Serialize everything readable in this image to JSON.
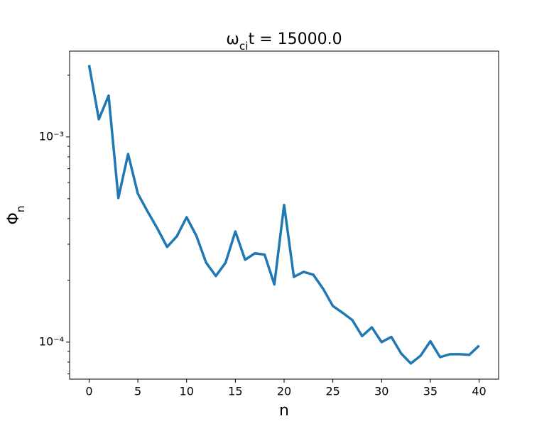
{
  "chart_data": {
    "type": "line",
    "title": "ωcit = 15000.0",
    "xlabel": "n",
    "ylabel": "Φn",
    "x": [
      0,
      1,
      2,
      3,
      4,
      5,
      6,
      7,
      8,
      9,
      10,
      11,
      12,
      13,
      14,
      15,
      16,
      17,
      18,
      19,
      20,
      21,
      22,
      23,
      24,
      25,
      26,
      27,
      28,
      29,
      30,
      31,
      32,
      33,
      34,
      35,
      36,
      37,
      38,
      39,
      40
    ],
    "series": [
      {
        "color": "#1f77b4",
        "values": [
          0.00224,
          0.00122,
          0.00159,
          0.000504,
          0.000826,
          0.000529,
          0.000433,
          0.000358,
          0.000291,
          0.000328,
          0.000406,
          0.00033,
          0.000244,
          0.00021,
          0.000244,
          0.000346,
          0.000252,
          0.000271,
          0.000267,
          0.000191,
          0.000466,
          0.000208,
          0.00022,
          0.000213,
          0.000182,
          0.00015,
          0.000139,
          0.000128,
          0.000107,
          0.000118,
          0.0001,
          0.000106,
          8.81e-05,
          7.87e-05,
          8.59e-05,
          0.000101,
          8.45e-05,
          8.73e-05,
          8.73e-05,
          8.67e-05,
          9.62e-05
        ]
      }
    ],
    "xlim": [
      -2,
      42
    ],
    "xticks": [
      0,
      5,
      10,
      15,
      20,
      25,
      30,
      35,
      40
    ],
    "ylim": [
      6.6e-05,
      0.00262
    ],
    "log_y": true,
    "yticks": [
      {
        "value": 0.0001,
        "label": "10⁻⁴"
      },
      {
        "value": 0.001,
        "label": "10⁻³"
      }
    ],
    "yminorticks": [
      7e-05,
      8e-05,
      9e-05,
      0.0002,
      0.0003,
      0.0004,
      0.0005,
      0.0006,
      0.0007,
      0.0008,
      0.0009,
      0.002
    ],
    "grid": false
  }
}
